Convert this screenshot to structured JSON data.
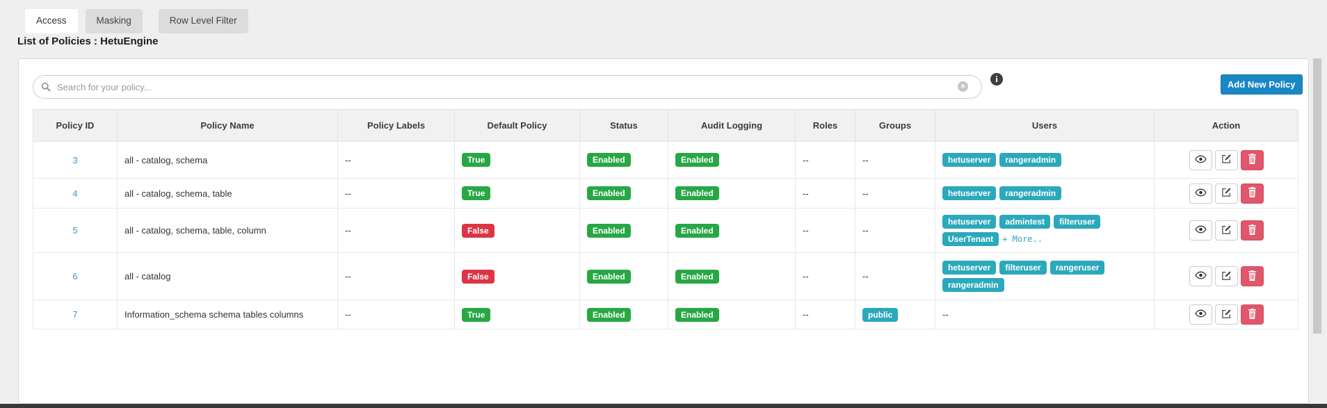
{
  "tabs": [
    {
      "label": "Access",
      "active": true
    },
    {
      "label": "Masking",
      "active": false
    },
    {
      "label": "Row Level Filter",
      "active": false
    }
  ],
  "page_title": "List of Policies : HetuEngine",
  "toolbar": {
    "search_placeholder": "Search for your policy...",
    "clear_icon": "x",
    "info_icon": "i",
    "add_button_label": "Add New Policy"
  },
  "colors": {
    "accent_blue": "#1a87c5",
    "link_blue": "#3e97d3",
    "badge_green": "#28a745",
    "badge_red": "#dc3545",
    "badge_teal": "#2ba9bb",
    "delete_red": "#e0566a"
  },
  "table": {
    "columns": [
      "Policy ID",
      "Policy Name",
      "Policy Labels",
      "Default Policy",
      "Status",
      "Audit Logging",
      "Roles",
      "Groups",
      "Users",
      "Action"
    ],
    "empty_placeholder": "--",
    "action_icons": [
      "view-eye",
      "edit-pencil",
      "delete-trash"
    ],
    "rows": [
      {
        "id": "3",
        "name": "all - catalog, schema",
        "labels": "--",
        "default_policy": "True",
        "status": "Enabled",
        "audit_logging": "Enabled",
        "roles": "--",
        "groups": [],
        "users": [
          "hetuserver",
          "rangeradmin"
        ],
        "users_more": ""
      },
      {
        "id": "4",
        "name": "all - catalog, schema, table",
        "labels": "--",
        "default_policy": "True",
        "status": "Enabled",
        "audit_logging": "Enabled",
        "roles": "--",
        "groups": [],
        "users": [
          "hetuserver",
          "rangeradmin"
        ],
        "users_more": ""
      },
      {
        "id": "5",
        "name": "all - catalog, schema, table, column",
        "labels": "--",
        "default_policy": "False",
        "status": "Enabled",
        "audit_logging": "Enabled",
        "roles": "--",
        "groups": [],
        "users": [
          "hetuserver",
          "admintest",
          "filteruser",
          "UserTenant"
        ],
        "users_more": "+ More.."
      },
      {
        "id": "6",
        "name": "all - catalog",
        "labels": "--",
        "default_policy": "False",
        "status": "Enabled",
        "audit_logging": "Enabled",
        "roles": "--",
        "groups": [],
        "users": [
          "hetuserver",
          "filteruser",
          "rangeruser",
          "rangeradmin"
        ],
        "users_more": ""
      },
      {
        "id": "7",
        "name": "Information_schema schema tables columns",
        "labels": "--",
        "default_policy": "True",
        "status": "Enabled",
        "audit_logging": "Enabled",
        "roles": "--",
        "groups": [
          "public"
        ],
        "users": [],
        "users_more": ""
      }
    ]
  }
}
